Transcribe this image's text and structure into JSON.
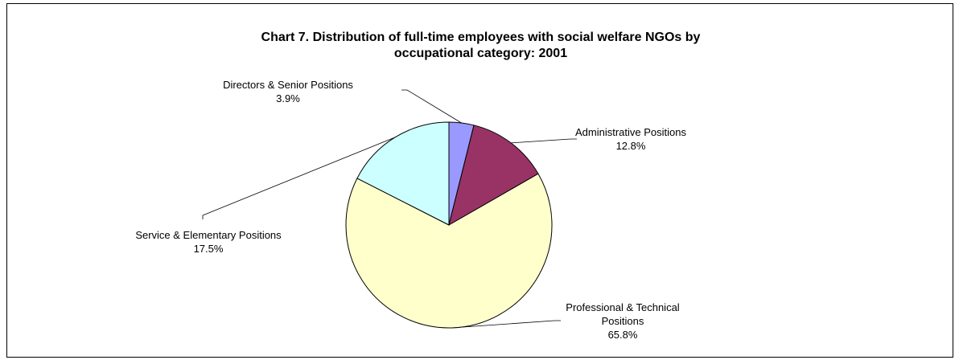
{
  "chart_data": {
    "type": "pie",
    "title_lines": [
      "Chart 7.  Distribution of full-time employees with social welfare NGOs by",
      "occupational category: 2001"
    ],
    "slices": [
      {
        "label_lines": [
          "Directors & Senior Positions"
        ],
        "percent_text": "3.9%",
        "value": 3.9,
        "color": "#9999FF"
      },
      {
        "label_lines": [
          "Administrative Positions"
        ],
        "percent_text": "12.8%",
        "value": 12.8,
        "color": "#993366"
      },
      {
        "label_lines": [
          "Professional & Technical",
          "Positions"
        ],
        "percent_text": "65.8%",
        "value": 65.8,
        "color": "#FFFFCC"
      },
      {
        "label_lines": [
          "Service & Elementary Positions"
        ],
        "percent_text": "17.5%",
        "value": 17.5,
        "color": "#CCFFFF"
      }
    ],
    "legend": "none"
  }
}
